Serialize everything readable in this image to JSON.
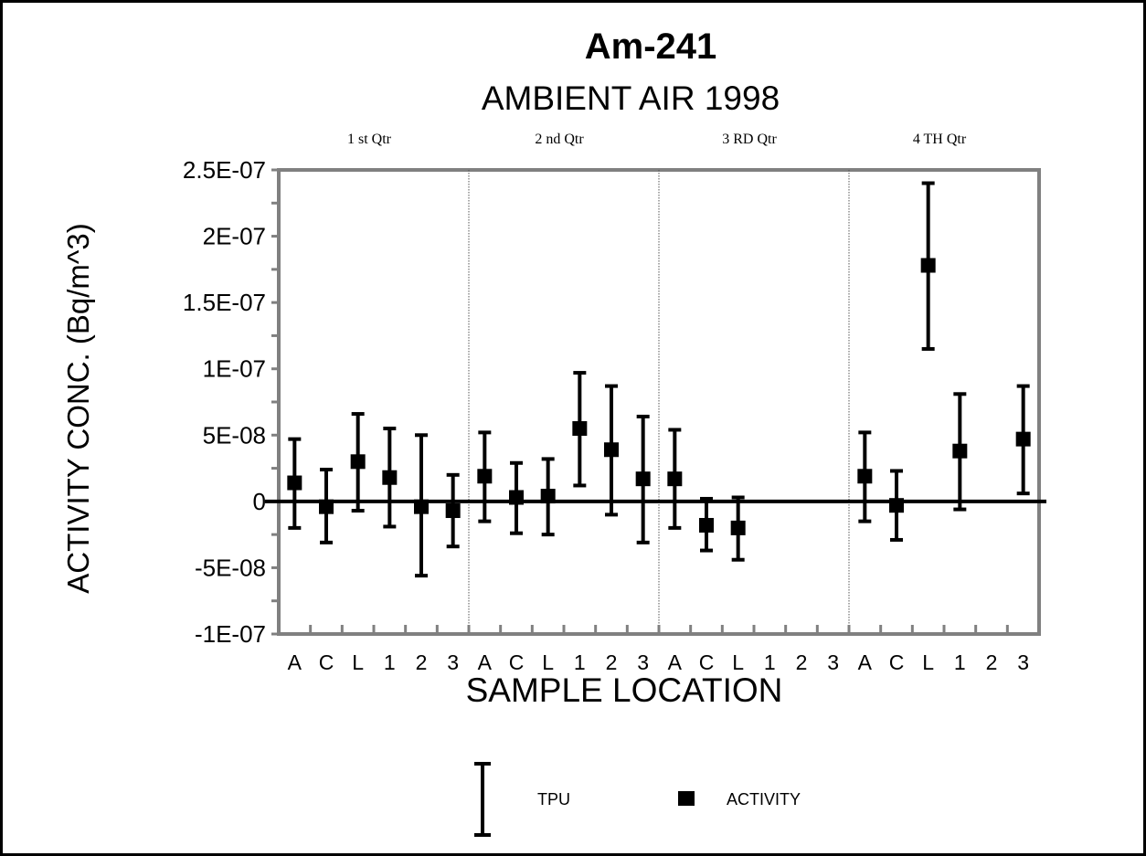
{
  "chart_data": {
    "type": "scatter",
    "title": "Am-241",
    "subtitle": "AMBIENT AIR 1998",
    "xlabel": "SAMPLE LOCATION",
    "ylabel": "ACTIVITY CONC. (Bq/m^3)",
    "ylim": [
      -1e-07,
      2.5e-07
    ],
    "yticks": [
      "2.5E-07",
      "2E-07",
      "1.5E-07",
      "1E-07",
      "5E-08",
      "0",
      "-5E-08",
      "-1E-07"
    ],
    "ytick_values": [
      2.5e-07,
      2e-07,
      1.5e-07,
      1e-07,
      5e-08,
      0,
      -5e-08,
      -1e-07
    ],
    "categories": [
      "A",
      "C",
      "L",
      "1",
      "2",
      "3",
      "A",
      "C",
      "L",
      "1",
      "2",
      "3",
      "A",
      "C",
      "L",
      "1",
      "2",
      "3",
      "A",
      "C",
      "L",
      "1",
      "2",
      "3"
    ],
    "quarters": [
      "1 st Qtr",
      "2 nd Qtr",
      "3 RD Qtr",
      "4 TH Qtr"
    ],
    "grid": false,
    "legend_position": "bottom",
    "series": [
      {
        "name": "ACTIVITY",
        "values": [
          1.4e-08,
          -4e-09,
          3e-08,
          1.8e-08,
          -4e-09,
          -7e-09,
          1.9e-08,
          3e-09,
          4e-09,
          5.5e-08,
          3.9e-08,
          1.7e-08,
          1.7e-08,
          -1.8e-08,
          -2e-08,
          null,
          null,
          null,
          1.9e-08,
          -3e-09,
          1.78e-07,
          3.8e-08,
          null,
          4.7e-08
        ]
      },
      {
        "name": "TPU",
        "lower": [
          -2e-08,
          -3.1e-08,
          -7e-09,
          -1.9e-08,
          -5.6e-08,
          -3.4e-08,
          -1.5e-08,
          -2.4e-08,
          -2.5e-08,
          1.2e-08,
          -1e-08,
          -3.1e-08,
          -2e-08,
          -3.7e-08,
          -4.4e-08,
          null,
          null,
          null,
          -1.5e-08,
          -2.9e-08,
          1.15e-07,
          -6e-09,
          null,
          6e-09
        ],
        "upper": [
          4.7e-08,
          2.4e-08,
          6.6e-08,
          5.5e-08,
          5e-08,
          2e-08,
          5.2e-08,
          2.9e-08,
          3.2e-08,
          9.7e-08,
          8.7e-08,
          6.4e-08,
          5.4e-08,
          2e-09,
          3e-09,
          null,
          null,
          null,
          5.2e-08,
          2.3e-08,
          2.4e-07,
          8.1e-08,
          null,
          8.7e-08
        ]
      }
    ],
    "legend": [
      {
        "label": "TPU",
        "symbol": "error-bar-icon"
      },
      {
        "label": "ACTIVITY",
        "symbol": "square-marker-icon"
      }
    ],
    "colors": {
      "axis": "#808080",
      "marks": "#000000",
      "divider": "#555555"
    }
  }
}
